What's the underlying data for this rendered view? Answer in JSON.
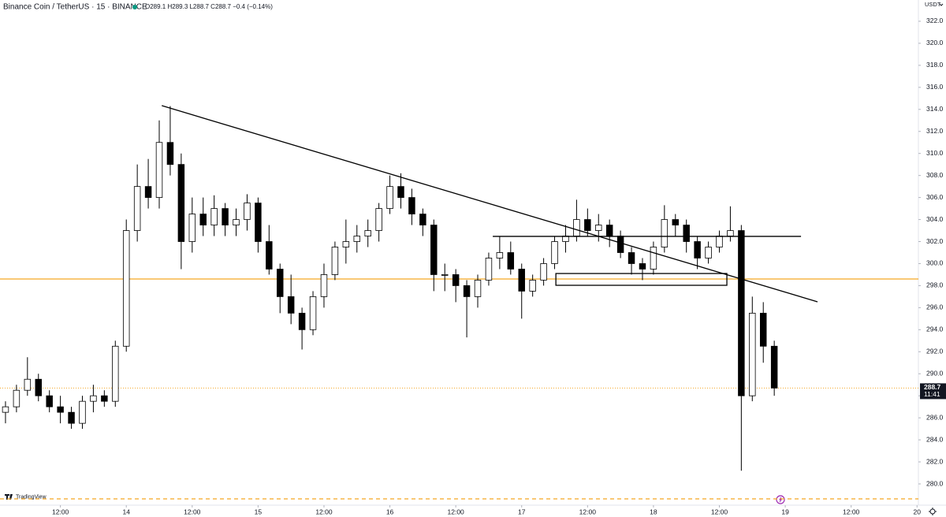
{
  "chart_data": {
    "type": "candlestick",
    "title": "Binance Coin / TetherUS · 15 · BINANCE",
    "ohlc_text": "O289.1 H289.3 L288.7 C288.7 −0.4 (−0.14%)",
    "currency": "USDT",
    "countdown": "11:41",
    "brand": "TradingView",
    "last_price": 288.7,
    "up_color": "#ffffff",
    "down_color": "#000000",
    "wick_color": "#000000",
    "level_color": "#f5a623",
    "drawing_color": "#000000",
    "xlim": [
      1,
      168.25
    ],
    "ylim": [
      278.14,
      323.93
    ],
    "xticks": [
      {
        "value": 12,
        "label": "12:00"
      },
      {
        "value": 24,
        "label": "14"
      },
      {
        "value": 36,
        "label": "12:00"
      },
      {
        "value": 48,
        "label": "15"
      },
      {
        "value": 60,
        "label": "12:00"
      },
      {
        "value": 72,
        "label": "16"
      },
      {
        "value": 84,
        "label": "12:00"
      },
      {
        "value": 96,
        "label": "17"
      },
      {
        "value": 108,
        "label": "12:00"
      },
      {
        "value": 120,
        "label": "18"
      },
      {
        "value": 132,
        "label": "12:00"
      },
      {
        "value": 144,
        "label": "19"
      },
      {
        "value": 156,
        "label": "12:00"
      },
      {
        "value": 168,
        "label": "20"
      }
    ],
    "yticks": [
      {
        "value": 280,
        "label": "280.0"
      },
      {
        "value": 282,
        "label": "282.0"
      },
      {
        "value": 284,
        "label": "284.0"
      },
      {
        "value": 286,
        "label": "286.0"
      },
      {
        "value": 288,
        "label": "288.0"
      },
      {
        "value": 290,
        "label": "290.0"
      },
      {
        "value": 292,
        "label": "292.0"
      },
      {
        "value": 294,
        "label": "294.0"
      },
      {
        "value": 296,
        "label": "296.0"
      },
      {
        "value": 298,
        "label": "298.0"
      },
      {
        "value": 300,
        "label": "300.0"
      },
      {
        "value": 302,
        "label": "302.0"
      },
      {
        "value": 304,
        "label": "304.0"
      },
      {
        "value": 306,
        "label": "306.0"
      },
      {
        "value": 308,
        "label": "308.0"
      },
      {
        "value": 310,
        "label": "310.0"
      },
      {
        "value": 312,
        "label": "312.0"
      },
      {
        "value": 314,
        "label": "314.0"
      },
      {
        "value": 316,
        "label": "316.0"
      },
      {
        "value": 318,
        "label": "318.0"
      },
      {
        "value": 320,
        "label": "320.0"
      },
      {
        "value": 322,
        "label": "322.0"
      }
    ],
    "x": [
      2,
      4,
      6,
      8,
      10,
      12,
      14,
      16,
      18,
      20,
      22,
      24,
      26,
      28,
      30,
      32,
      34,
      36,
      38,
      40,
      42,
      44,
      46,
      48,
      50,
      52,
      54,
      56,
      58,
      60,
      62,
      64,
      66,
      68,
      70,
      72,
      74,
      76,
      78,
      80,
      82,
      84,
      86,
      88,
      90,
      92,
      94,
      96,
      98,
      100,
      102,
      104,
      106,
      108,
      110,
      112,
      114,
      116,
      118,
      120,
      122,
      124,
      126,
      128,
      130,
      132,
      134,
      136,
      138,
      140,
      142
    ],
    "series": [
      {
        "open": [
          286.5,
          287,
          288.5,
          289.5,
          288,
          287,
          286.5,
          285.5,
          287.5,
          288,
          287.5,
          292.5,
          303,
          307,
          306,
          311,
          309,
          302,
          304.5,
          303.5,
          305,
          303.5,
          304,
          305.5,
          302,
          299.5,
          297,
          295.5,
          294,
          297,
          299,
          301.5,
          302,
          302.5,
          303,
          305,
          307,
          306,
          304.5,
          303.5,
          299,
          299,
          298,
          297,
          298.5,
          300.5,
          301,
          299.5,
          297.5,
          298.5,
          300,
          302,
          302.5,
          304,
          303,
          303.5,
          302.5,
          301,
          300,
          299.5,
          301.5,
          304,
          303.5,
          302,
          300.5,
          301.5,
          302.5,
          303,
          288,
          295.5,
          292.5
        ],
        "high": [
          287.5,
          289,
          291.5,
          290,
          288.5,
          288,
          287,
          288,
          289,
          288.5,
          293,
          304,
          309,
          309.5,
          313,
          314.3,
          310,
          306,
          306,
          306.2,
          305.5,
          305,
          306.3,
          306,
          303.5,
          300,
          299,
          296,
          297.5,
          300,
          302,
          304,
          303.5,
          304,
          305.5,
          308,
          308.2,
          306.8,
          305,
          304,
          300,
          299.5,
          298.5,
          299,
          301,
          302.5,
          302,
          300,
          299,
          300.5,
          302.5,
          303.5,
          305.8,
          305,
          304.5,
          304,
          303,
          301.5,
          300.5,
          302,
          305.3,
          304.5,
          304,
          302.5,
          302,
          303,
          305.2,
          303.5,
          297,
          296.5,
          293
        ],
        "low": [
          285.5,
          286.5,
          288,
          287.5,
          286.5,
          285.5,
          285,
          285,
          286.5,
          287,
          287,
          292,
          302,
          305,
          305,
          308,
          299.5,
          301,
          302.5,
          302.5,
          302.5,
          302.5,
          303,
          301,
          299,
          295.5,
          294.5,
          292.2,
          293.5,
          296,
          298.5,
          300,
          301,
          301.5,
          302,
          304.5,
          305,
          303.5,
          302.5,
          297.5,
          297.5,
          296.5,
          293.3,
          296,
          298,
          299.5,
          299,
          295,
          297,
          298,
          299.5,
          301,
          302,
          302.5,
          302,
          301.5,
          300.5,
          299,
          298.5,
          299,
          301,
          302.5,
          301,
          299.5,
          300,
          301,
          302,
          281.2,
          287.5,
          291,
          288
        ],
        "close": [
          287,
          288.5,
          289.5,
          288,
          287,
          286.5,
          285.5,
          287.5,
          288,
          287.5,
          292.5,
          303,
          307,
          306,
          311,
          309,
          302,
          304.5,
          303.5,
          305,
          303.5,
          304,
          305.5,
          302,
          299.5,
          297,
          295.5,
          294,
          297,
          299,
          301.5,
          302,
          302.5,
          303,
          305,
          307,
          306,
          304.5,
          303.5,
          299,
          299,
          298,
          297,
          298.5,
          300.5,
          301,
          299.5,
          297.5,
          298.5,
          300,
          302,
          302.5,
          304,
          303,
          303.5,
          302.5,
          301,
          300,
          299.5,
          301.5,
          304,
          303.5,
          302,
          300.5,
          301.5,
          302.5,
          303,
          288,
          295.5,
          292.5,
          288.7
        ]
      }
    ],
    "lines": [
      {
        "x": [
          30.46,
          149.88
        ],
        "y": [
          314.34,
          296.53
        ]
      },
      {
        "x": [
          90.74,
          146.87
        ],
        "y": [
          302.47,
          302.47
        ]
      }
    ],
    "rectangles": [
      {
        "x": [
          102.23,
          133.37
        ],
        "y": [
          299.1,
          298.03
        ]
      }
    ],
    "levels": [
      {
        "value": 298.6,
        "style": "solid"
      },
      {
        "value": 278.64,
        "style": "dashed"
      }
    ]
  }
}
